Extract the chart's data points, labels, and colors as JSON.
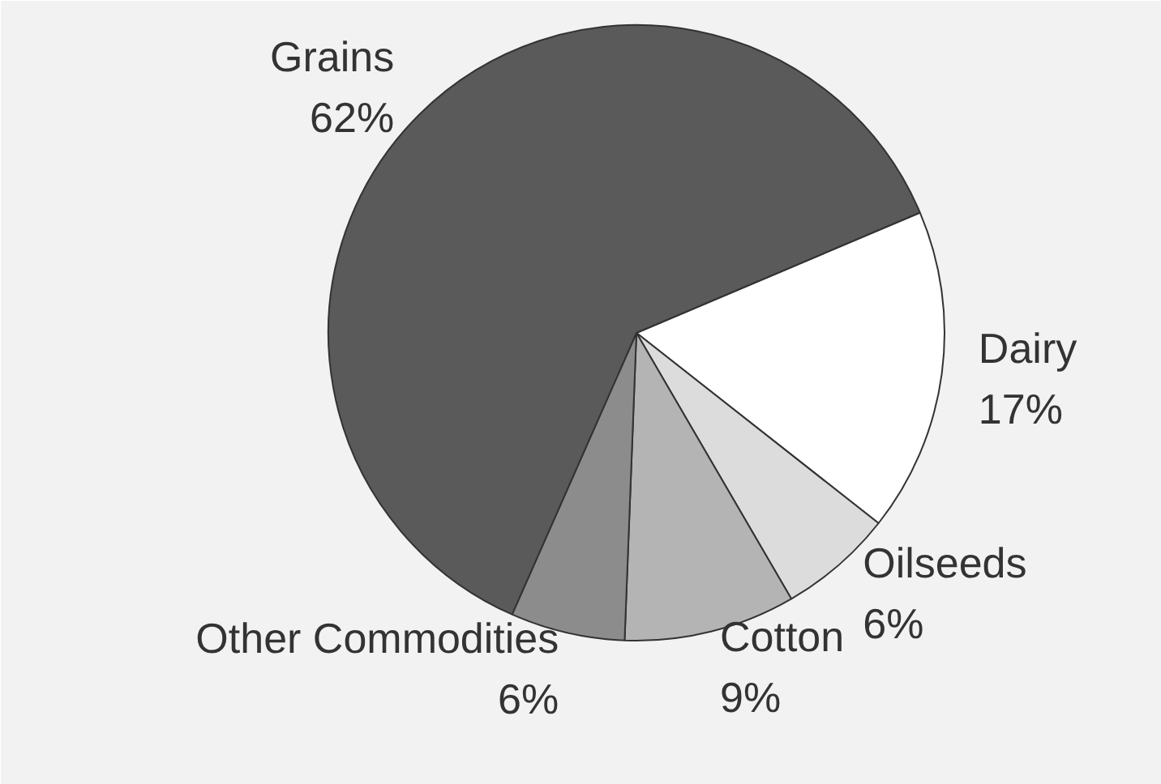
{
  "chart_data": {
    "type": "pie",
    "categories": [
      "Dairy",
      "Oilseeds",
      "Cotton",
      "Other Commodities",
      "Grains"
    ],
    "values": [
      17,
      6,
      9,
      6,
      62
    ],
    "value_labels": [
      "17%",
      "6%",
      "9%",
      "6%",
      "62%"
    ],
    "colors": [
      "#ffffff",
      "#dcdcdc",
      "#b4b4b4",
      "#8c8c8c",
      "#5a5a5a"
    ]
  }
}
